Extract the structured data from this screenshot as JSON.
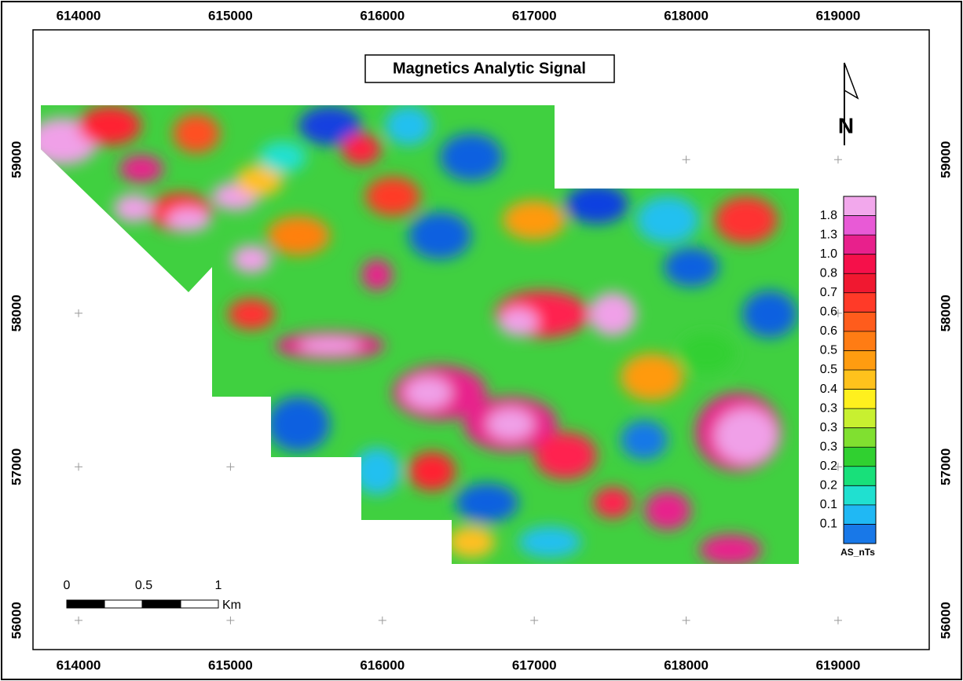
{
  "map": {
    "title": "Magnetics Analytic Signal",
    "north_label": "N",
    "xlim": [
      613700,
      619600
    ],
    "ylim": [
      55810,
      59845
    ],
    "xticks": [
      614000,
      615000,
      616000,
      617000,
      618000,
      619000
    ],
    "yticks": [
      56000,
      57000,
      58000,
      59000
    ],
    "legend": {
      "title": "AS_nTs",
      "labels": [
        "1.8",
        "1.3",
        "1.0",
        "0.8",
        "0.7",
        "0.6",
        "0.6",
        "0.5",
        "0.5",
        "0.4",
        "0.3",
        "0.3",
        "0.3",
        "0.2",
        "0.2",
        "0.1",
        "0.1"
      ],
      "colors": [
        "#f2a8ec",
        "#e85ad6",
        "#e8208c",
        "#f5104a",
        "#f01830",
        "#ff3a28",
        "#ff5c1c",
        "#ff7c14",
        "#ff9c10",
        "#ffc21c",
        "#fff01e",
        "#c8f030",
        "#80e030",
        "#30d030",
        "#18e07a",
        "#20e0d0",
        "#20b8f4",
        "#1878e8"
      ]
    },
    "scale_bar": {
      "labels": [
        "0",
        "0.5",
        "1"
      ],
      "unit": "Km"
    }
  }
}
